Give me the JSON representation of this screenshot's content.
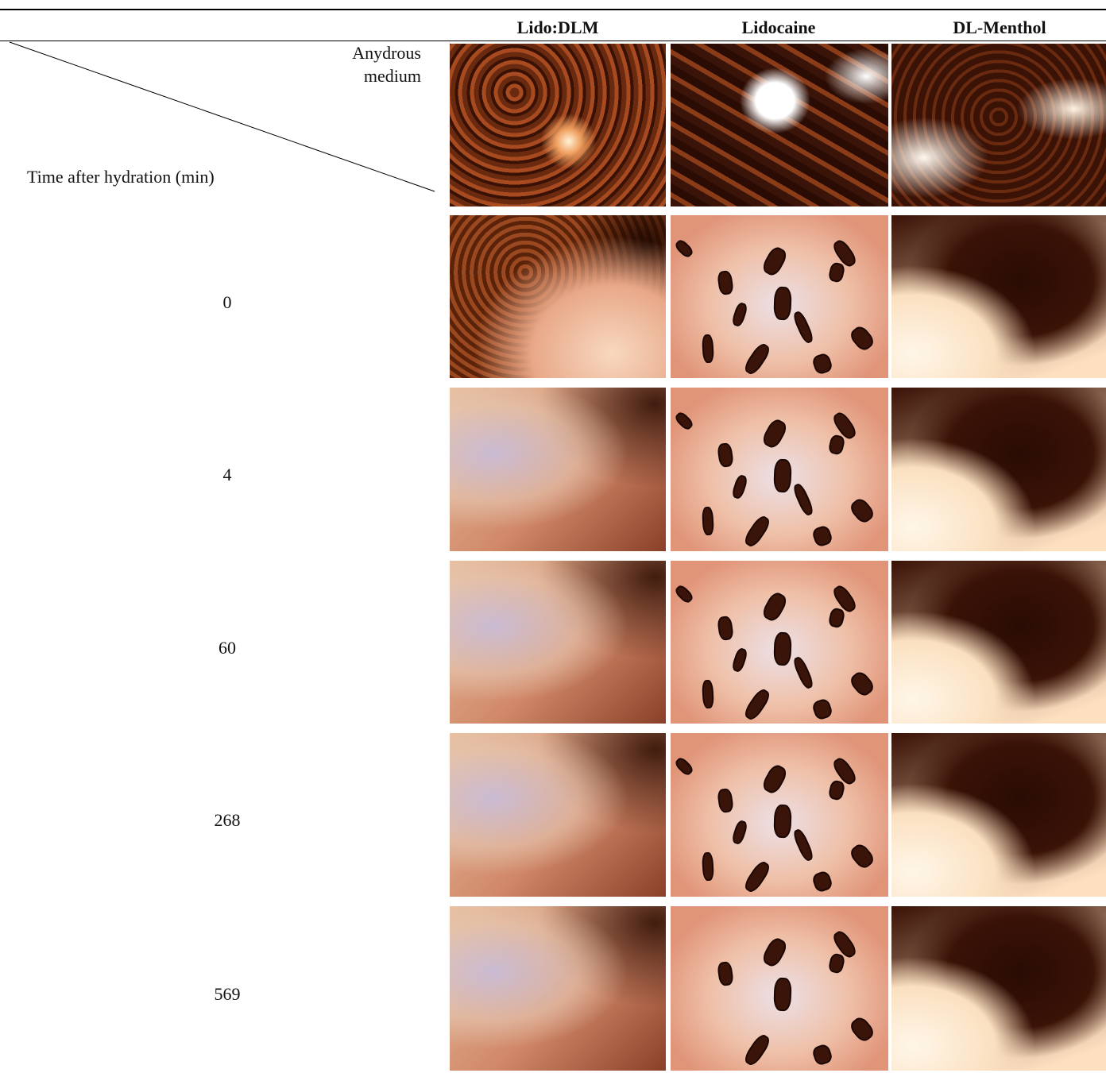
{
  "table": {
    "corner": {
      "top_right": "Anydrous medium",
      "bottom_left": "Time after hydration (min)"
    },
    "columns": [
      "Lido:DLM",
      "Lidocaine",
      "DL-Menthol"
    ],
    "rows": [
      "0",
      "4",
      "60",
      "268",
      "569"
    ]
  }
}
